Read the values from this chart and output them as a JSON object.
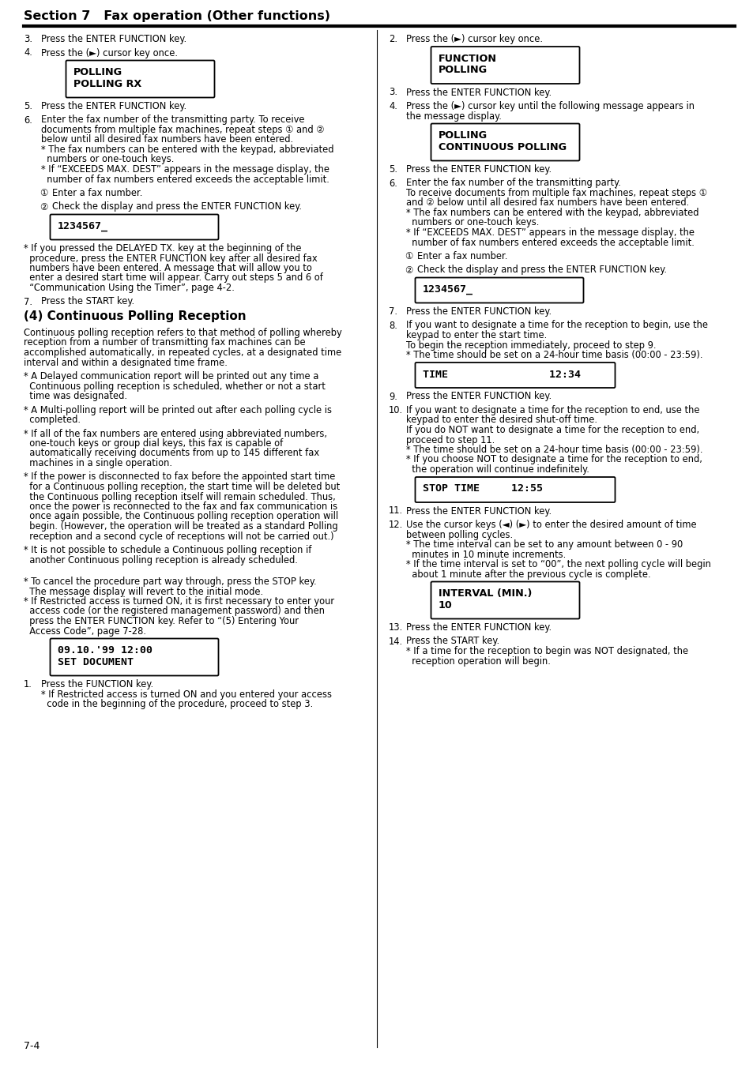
{
  "page_bg": "#ffffff",
  "section_title": "Section 7   Fax operation (Other functions)",
  "page_number": "7-4",
  "left_column_items": [
    {
      "type": "step",
      "num": "3.",
      "text": "Press the ENTER FUNCTION key."
    },
    {
      "type": "step",
      "num": "4.",
      "text": "Press the (►) cursor key once."
    },
    {
      "type": "display_box",
      "lines": [
        "POLLING",
        "POLLING RX"
      ]
    },
    {
      "type": "step",
      "num": "5.",
      "text": "Press the ENTER FUNCTION key."
    },
    {
      "type": "step",
      "num": "6.",
      "text": "Enter the fax number of the transmitting party. To receive",
      "text2": [
        "documents from multiple fax machines, repeat steps ① and ②",
        "below until all desired fax numbers have been entered.",
        "* The fax numbers can be entered with the keypad, abbreviated",
        "  numbers or one-touch keys.",
        "* If “EXCEEDS MAX. DEST” appears in the message display, the",
        "  number of fax numbers entered exceeds the acceptable limit."
      ]
    },
    {
      "type": "substep",
      "num": "①",
      "text": "Enter a fax number."
    },
    {
      "type": "substep",
      "num": "②",
      "text": "Check the display and press the ENTER FUNCTION key."
    },
    {
      "type": "display_box_mono",
      "lines": [
        "1234567_"
      ]
    },
    {
      "type": "note",
      "lines": [
        "* If you pressed the DELAYED TX. key at the beginning of the",
        "  procedure, press the ENTER FUNCTION key after all desired fax",
        "  numbers have been entered. A message that will allow you to",
        "  enter a desired start time will appear. Carry out steps 5 and 6 of",
        "  “Communication Using the Timer”, page 4-2."
      ]
    },
    {
      "type": "step",
      "num": "7.",
      "text": "Press the START key."
    },
    {
      "type": "section_heading",
      "text": "(4) Continuous Polling Reception"
    },
    {
      "type": "paragraph",
      "lines": [
        "Continuous polling reception refers to that method of polling whereby",
        "reception from a number of transmitting fax machines can be",
        "accomplished automatically, in repeated cycles, at a designated time",
        "interval and within a designated time frame."
      ]
    },
    {
      "type": "note",
      "lines": [
        "* A Delayed communication report will be printed out any time a",
        "  Continuous polling reception is scheduled, whether or not a start",
        "  time was designated."
      ]
    },
    {
      "type": "note",
      "lines": [
        "* A Multi-polling report will be printed out after each polling cycle is",
        "  completed."
      ]
    },
    {
      "type": "note",
      "lines": [
        "* If all of the fax numbers are entered using abbreviated numbers,",
        "  one-touch keys or group dial keys, this fax is capable of",
        "  automatically receiving documents from up to 145 different fax",
        "  machines in a single operation."
      ]
    },
    {
      "type": "note",
      "lines": [
        "* If the power is disconnected to fax before the appointed start time",
        "  for a Continuous polling reception, the start time will be deleted but",
        "  the Continuous polling reception itself will remain scheduled. Thus,",
        "  once the power is reconnected to the fax and fax communication is",
        "  once again possible, the Continuous polling reception operation will",
        "  begin. (However, the operation will be treated as a standard Polling",
        "  reception and a second cycle of receptions will not be carried out.)"
      ]
    },
    {
      "type": "note",
      "lines": [
        "* It is not possible to schedule a Continuous polling reception if",
        "  another Continuous polling reception is already scheduled."
      ]
    },
    {
      "type": "gap"
    },
    {
      "type": "note",
      "lines": [
        "* To cancel the procedure part way through, press the STOP key.",
        "  The message display will revert to the initial mode.",
        "* If Restricted access is turned ON, it is first necessary to enter your",
        "  access code (or the registered management password) and then",
        "  press the ENTER FUNCTION key. Refer to “(5) Entering Your",
        "  Access Code”, page 7-28."
      ]
    },
    {
      "type": "display_box_mono",
      "lines": [
        "09.10.'99 12:00",
        "SET DOCUMENT"
      ]
    },
    {
      "type": "step",
      "num": "1.",
      "text": "Press the FUNCTION key.",
      "text2": [
        "* If Restricted access is turned ON and you entered your access",
        "  code in the beginning of the procedure, proceed to step 3."
      ]
    }
  ],
  "right_column_items": [
    {
      "type": "step",
      "num": "2.",
      "text": "Press the (►) cursor key once."
    },
    {
      "type": "display_box",
      "lines": [
        "FUNCTION",
        "POLLING"
      ]
    },
    {
      "type": "step",
      "num": "3.",
      "text": "Press the ENTER FUNCTION key."
    },
    {
      "type": "step",
      "num": "4.",
      "text": "Press the (►) cursor key until the following message appears in",
      "text2": [
        "the message display."
      ]
    },
    {
      "type": "display_box",
      "lines": [
        "POLLING",
        "CONTINUOUS POLLING"
      ]
    },
    {
      "type": "step",
      "num": "5.",
      "text": "Press the ENTER FUNCTION key."
    },
    {
      "type": "step",
      "num": "6.",
      "text": "Enter the fax number of the transmitting party.",
      "text2": [
        "To receive documents from multiple fax machines, repeat steps ①",
        "and ② below until all desired fax numbers have been entered.",
        "* The fax numbers can be entered with the keypad, abbreviated",
        "  numbers or one-touch keys.",
        "* If “EXCEEDS MAX. DEST” appears in the message display, the",
        "  number of fax numbers entered exceeds the acceptable limit."
      ]
    },
    {
      "type": "substep",
      "num": "①",
      "text": "Enter a fax number."
    },
    {
      "type": "substep",
      "num": "②",
      "text": "Check the display and press the ENTER FUNCTION key."
    },
    {
      "type": "display_box_mono",
      "lines": [
        "1234567_"
      ]
    },
    {
      "type": "step",
      "num": "7.",
      "text": "Press the ENTER FUNCTION key."
    },
    {
      "type": "step",
      "num": "8.",
      "text": "If you want to designate a time for the reception to begin, use the",
      "text2": [
        "keypad to enter the start time.",
        "To begin the reception immediately, proceed to step 9.",
        "* The time should be set on a 24-hour time basis (00:00 - 23:59)."
      ]
    },
    {
      "type": "display_box_mono_wide",
      "lines": [
        "TIME                12:34"
      ]
    },
    {
      "type": "step",
      "num": "9.",
      "text": "Press the ENTER FUNCTION key."
    },
    {
      "type": "step",
      "num": "10.",
      "text": "If you want to designate a time for the reception to end, use the",
      "text2": [
        "keypad to enter the desired shut-off time.",
        "If you do NOT want to designate a time for the reception to end,",
        "proceed to step 11.",
        "* The time should be set on a 24-hour time basis (00:00 - 23:59).",
        "* If you choose NOT to designate a time for the reception to end,",
        "  the operation will continue indefinitely."
      ]
    },
    {
      "type": "display_box_mono_wide",
      "lines": [
        "STOP TIME     12:55"
      ]
    },
    {
      "type": "step",
      "num": "11.",
      "text": "Press the ENTER FUNCTION key."
    },
    {
      "type": "step",
      "num": "12.",
      "text": "Use the cursor keys (◄) (►) to enter the desired amount of time",
      "text2": [
        "between polling cycles.",
        "* The time interval can be set to any amount between 0 - 90",
        "  minutes in 10 minute increments.",
        "* If the time interval is set to “00”, the next polling cycle will begin",
        "  about 1 minute after the previous cycle is complete."
      ]
    },
    {
      "type": "display_box",
      "lines": [
        "INTERVAL (MIN.)",
        "10"
      ]
    },
    {
      "type": "step",
      "num": "13.",
      "text": "Press the ENTER FUNCTION key."
    },
    {
      "type": "step",
      "num": "14.",
      "text": "Press the START key.",
      "text2": [
        "* If a time for the reception to begin was NOT designated, the",
        "  reception operation will begin."
      ]
    }
  ]
}
